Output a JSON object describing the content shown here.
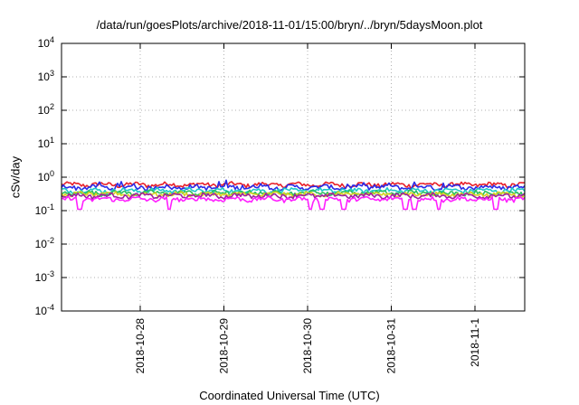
{
  "chart_data": {
    "type": "line",
    "title": "/data/run/goesPlots/archive/2018-11-01/15:00/bryn/../bryn/5daysMoon.plot",
    "xlabel": "Coordinated Universal Time (UTC)",
    "ylabel": "cSv/day",
    "yscale": "log",
    "ylim": [
      0.0001,
      10000
    ],
    "xlim": [
      "2018-10-27",
      "2018-11-01"
    ],
    "grid": true,
    "legend": "none",
    "x_tick_labels": [
      "2018-10-28",
      "2018-10-29",
      "2018-10-30",
      "2018-10-31",
      "2018-11-1"
    ],
    "y_tick_labels": [
      {
        "base": "10",
        "exp": "-4"
      },
      {
        "base": "10",
        "exp": "-3"
      },
      {
        "base": "10",
        "exp": "-2"
      },
      {
        "base": "10",
        "exp": "-1"
      },
      {
        "base": "10",
        "exp": "0"
      },
      {
        "base": "10",
        "exp": "1"
      },
      {
        "base": "10",
        "exp": "2"
      },
      {
        "base": "10",
        "exp": "3"
      },
      {
        "base": "10",
        "exp": "4"
      }
    ],
    "series": [
      {
        "color": "#e8202a",
        "level": 0.6
      },
      {
        "color": "#2a2ae8",
        "level": 0.5
      },
      {
        "color": "#20c8c8",
        "level": 0.4
      },
      {
        "color": "#2ac060",
        "level": 0.34
      },
      {
        "color": "#d8d020",
        "level": 0.31
      },
      {
        "color": "#a020a0",
        "level": 0.28
      },
      {
        "color": "#ff20ff",
        "level": 0.22
      }
    ]
  }
}
